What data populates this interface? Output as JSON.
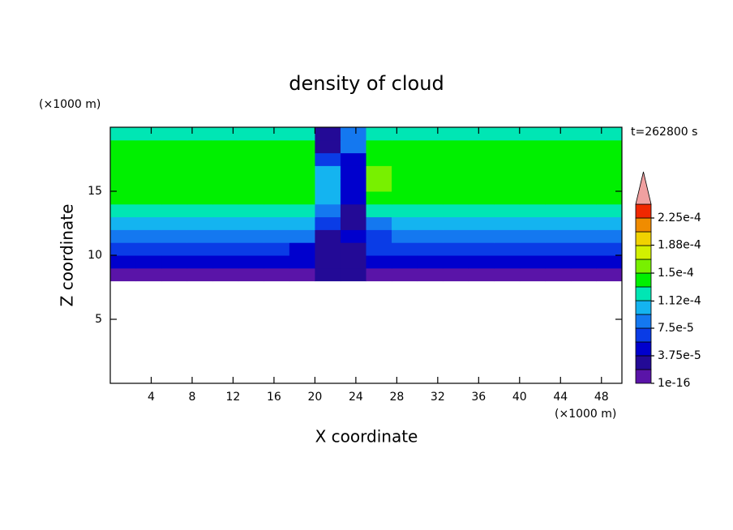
{
  "chart_data": {
    "type": "contour",
    "title": "density of cloud",
    "xlabel": "X coordinate",
    "ylabel": "Z coordinate",
    "xunit": "(×1000 m)",
    "yunit": "(×1000 m)",
    "time_label": "t=262800 s",
    "xlim": [
      0,
      50
    ],
    "ylim": [
      0,
      20
    ],
    "xticks": [
      4,
      8,
      12,
      16,
      20,
      24,
      28,
      32,
      36,
      40,
      44,
      48
    ],
    "yticks": [
      5,
      10,
      15
    ],
    "x": [
      0,
      2.5,
      5,
      7.5,
      10,
      12.5,
      15,
      17.5,
      20,
      22.5,
      25,
      27.5,
      30,
      32.5,
      35,
      37.5,
      40,
      42.5,
      45,
      47.5,
      50
    ],
    "y": [
      0,
      1,
      2,
      3,
      4,
      5,
      6,
      7,
      8,
      9,
      10,
      11,
      12,
      13,
      14,
      15,
      16,
      17,
      18,
      19,
      20
    ],
    "values": [
      [
        0,
        0,
        0,
        0,
        0,
        0,
        0,
        0,
        0,
        0,
        0,
        0,
        0,
        0,
        0,
        0,
        0,
        0,
        0,
        0
      ],
      [
        0,
        0,
        0,
        0,
        0,
        0,
        0,
        0,
        0,
        0,
        0,
        0,
        0,
        0,
        0,
        0,
        0,
        0,
        0,
        0
      ],
      [
        0,
        0,
        0,
        0,
        0,
        0,
        0,
        0,
        0,
        0,
        0,
        0,
        0,
        0,
        0,
        0,
        0,
        0,
        0,
        0
      ],
      [
        0,
        0,
        0,
        0,
        0,
        0,
        0,
        0,
        0,
        0,
        0,
        0,
        0,
        0,
        0,
        0,
        0,
        0,
        0,
        0
      ],
      [
        0,
        0,
        0,
        0,
        0,
        0,
        0,
        0,
        0,
        0,
        0,
        0,
        0,
        0,
        0,
        0,
        0,
        0,
        0,
        0
      ],
      [
        0,
        0,
        0,
        0,
        0,
        0,
        0,
        0,
        0,
        0,
        0,
        0,
        0,
        0,
        0,
        0,
        0,
        0,
        0,
        0
      ],
      [
        0,
        0,
        0,
        0,
        0,
        0,
        0,
        0,
        0,
        0,
        0,
        0,
        0,
        0,
        0,
        0,
        0,
        0,
        0,
        0
      ],
      [
        0,
        0,
        0,
        0,
        0,
        0,
        0,
        0,
        0,
        0,
        0,
        0,
        0,
        0,
        0,
        0,
        0,
        0,
        0,
        0
      ],
      [
        1.5e-05,
        1.5e-05,
        1.5e-05,
        1.5e-05,
        1.5e-05,
        1.5e-05,
        1.5e-05,
        1.5e-05,
        3e-05,
        3e-05,
        1.5e-05,
        1.5e-05,
        1.5e-05,
        1.5e-05,
        1.5e-05,
        1.5e-05,
        1.5e-05,
        1.5e-05,
        1.5e-05,
        1.5e-05
      ],
      [
        4e-05,
        4e-05,
        4e-05,
        4e-05,
        4e-05,
        4e-05,
        4e-05,
        4e-05,
        3e-05,
        2e-05,
        4e-05,
        4e-05,
        4e-05,
        4e-05,
        4e-05,
        4e-05,
        4e-05,
        4e-05,
        4e-05,
        4e-05
      ],
      [
        6.5e-05,
        6.5e-05,
        6.5e-05,
        6.5e-05,
        6.5e-05,
        6.5e-05,
        6.5e-05,
        5e-05,
        2e-05,
        3e-05,
        6e-05,
        6.5e-05,
        6.5e-05,
        6.5e-05,
        6.5e-05,
        6.5e-05,
        6.5e-05,
        6.5e-05,
        6.5e-05,
        6.5e-05
      ],
      [
        8.5e-05,
        8.5e-05,
        8.5e-05,
        8.5e-05,
        8.5e-05,
        8.5e-05,
        8.5e-05,
        8.5e-05,
        3e-05,
        4e-05,
        7e-05,
        8.5e-05,
        8.5e-05,
        8.5e-05,
        8.5e-05,
        8.5e-05,
        8.5e-05,
        8.5e-05,
        8.5e-05,
        8.5e-05
      ],
      [
        0.0001,
        0.0001,
        0.0001,
        0.0001,
        0.0001,
        0.0001,
        0.0001,
        0.0001,
        6e-05,
        3e-05,
        9e-05,
        0.0001,
        0.0001,
        0.0001,
        0.0001,
        0.0001,
        0.0001,
        0.0001,
        0.0001,
        0.0001
      ],
      [
        0.000115,
        0.000115,
        0.000115,
        0.000115,
        0.000115,
        0.000115,
        0.000115,
        0.000115,
        9e-05,
        3e-05,
        0.00012,
        0.000115,
        0.000115,
        0.000115,
        0.000115,
        0.000115,
        0.000115,
        0.000115,
        0.000115,
        0.000115
      ],
      [
        0.000135,
        0.000135,
        0.000135,
        0.000135,
        0.000135,
        0.000135,
        0.000135,
        0.000135,
        0.0001,
        4e-05,
        0.000145,
        0.00014,
        0.000135,
        0.000135,
        0.000135,
        0.000135,
        0.000135,
        0.000135,
        0.000135,
        0.000135
      ],
      [
        0.00014,
        0.00014,
        0.00014,
        0.00014,
        0.00014,
        0.00014,
        0.00014,
        0.00014,
        0.00011,
        5e-05,
        0.000155,
        0.000145,
        0.00014,
        0.00014,
        0.00014,
        0.00014,
        0.00014,
        0.00014,
        0.00014,
        0.00014
      ],
      [
        0.00014,
        0.00014,
        0.00014,
        0.00014,
        0.00014,
        0.00014,
        0.00014,
        0.00014,
        0.00011,
        4e-05,
        0.000152,
        0.000145,
        0.00014,
        0.00014,
        0.00014,
        0.00014,
        0.00014,
        0.00014,
        0.00014,
        0.00014
      ],
      [
        0.000135,
        0.000135,
        0.000135,
        0.000135,
        0.000135,
        0.000135,
        0.000135,
        0.000135,
        6e-05,
        4e-05,
        0.00014,
        0.000135,
        0.000135,
        0.000135,
        0.000135,
        0.000135,
        0.000135,
        0.000135,
        0.000135,
        0.000135
      ],
      [
        0.000133,
        0.000133,
        0.000133,
        0.000133,
        0.000133,
        0.000133,
        0.000133,
        0.000133,
        3e-05,
        8e-05,
        0.000133,
        0.000133,
        0.000133,
        0.000133,
        0.000133,
        0.000133,
        0.000133,
        0.000133,
        0.000133,
        0.000133
      ],
      [
        0.00012,
        0.00012,
        0.00012,
        0.00012,
        0.00012,
        0.00012,
        0.00012,
        0.00012,
        2e-05,
        9e-05,
        0.00012,
        0.00012,
        0.00012,
        0.00012,
        0.00012,
        0.00012,
        0.00012,
        0.00012,
        0.00012,
        0.00012
      ]
    ],
    "levels": [
      1e-16,
      1.875e-05,
      3.75e-05,
      5.625e-05,
      7.5e-05,
      9.375e-05,
      0.0001125,
      0.00013125,
      0.00015,
      0.00016875,
      0.0001875,
      0.00020625,
      0.000225
    ],
    "colors": [
      "#5a14a8",
      "#230a96",
      "#0000cd",
      "#0a3ce6",
      "#1478f0",
      "#14b4f0",
      "#00e6b4",
      "#00f000",
      "#78f000",
      "#d2f000",
      "#f0d200",
      "#f08c00",
      "#f02800"
    ],
    "extend_color": "#f0a0a0",
    "cticks": [
      {
        "value": 1e-16,
        "label": "1e-16"
      },
      {
        "value": 3.75e-05,
        "label": "3.75e-5"
      },
      {
        "value": 7.5e-05,
        "label": "7.5e-5"
      },
      {
        "value": 0.000112,
        "label": "1.12e-4"
      },
      {
        "value": 0.00015,
        "label": "1.5e-4"
      },
      {
        "value": 0.000188,
        "label": "1.88e-4"
      },
      {
        "value": 0.000225,
        "label": "2.25e-4"
      }
    ]
  }
}
